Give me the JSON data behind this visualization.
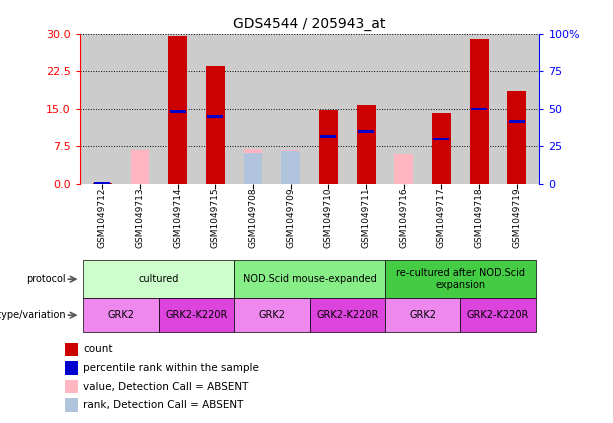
{
  "title": "GDS4544 / 205943_at",
  "samples": [
    "GSM1049712",
    "GSM1049713",
    "GSM1049714",
    "GSM1049715",
    "GSM1049708",
    "GSM1049709",
    "GSM1049710",
    "GSM1049711",
    "GSM1049716",
    "GSM1049717",
    "GSM1049718",
    "GSM1049719"
  ],
  "red_bars": [
    0.15,
    0,
    29.5,
    23.5,
    0,
    0,
    14.8,
    15.8,
    0,
    14.2,
    29.0,
    18.5
  ],
  "blue_markers": [
    0.15,
    0,
    14.5,
    13.5,
    0,
    0,
    9.5,
    10.5,
    0,
    9.0,
    15.0,
    12.5
  ],
  "pink_bars": [
    0,
    6.8,
    0,
    0,
    6.9,
    6.8,
    0,
    5.5,
    6.0,
    0,
    0,
    0
  ],
  "lightblue_bars": [
    0,
    0,
    0,
    0,
    6.2,
    6.5,
    0,
    0,
    0,
    0,
    0,
    0
  ],
  "ylim_left": [
    0,
    30
  ],
  "ylim_right": [
    0,
    100
  ],
  "yticks_left": [
    0,
    7.5,
    15,
    22.5,
    30
  ],
  "yticks_right": [
    0,
    25,
    50,
    75,
    100
  ],
  "protocol_groups": [
    {
      "label": "cultured",
      "start": 0,
      "end": 3,
      "color": "#ccffcc"
    },
    {
      "label": "NOD.Scid mouse-expanded",
      "start": 4,
      "end": 7,
      "color": "#88ee88"
    },
    {
      "label": "re-cultured after NOD.Scid\nexpansion",
      "start": 8,
      "end": 11,
      "color": "#44cc44"
    }
  ],
  "genotype_groups": [
    {
      "label": "GRK2",
      "start": 0,
      "end": 1,
      "color": "#ee88ee"
    },
    {
      "label": "GRK2-K220R",
      "start": 2,
      "end": 3,
      "color": "#dd44dd"
    },
    {
      "label": "GRK2",
      "start": 4,
      "end": 5,
      "color": "#ee88ee"
    },
    {
      "label": "GRK2-K220R",
      "start": 6,
      "end": 7,
      "color": "#dd44dd"
    },
    {
      "label": "GRK2",
      "start": 8,
      "end": 9,
      "color": "#ee88ee"
    },
    {
      "label": "GRK2-K220R",
      "start": 10,
      "end": 11,
      "color": "#dd44dd"
    }
  ],
  "bar_width": 0.5,
  "bg_color": "#cccccc",
  "red_color": "#cc0000",
  "blue_color": "#0000cc",
  "pink_color": "#ffb6c1",
  "lightblue_color": "#b0c4de",
  "legend_items": [
    {
      "color": "#cc0000",
      "label": "count"
    },
    {
      "color": "#0000cc",
      "label": "percentile rank within the sample"
    },
    {
      "color": "#ffb6c1",
      "label": "value, Detection Call = ABSENT"
    },
    {
      "color": "#b0c4de",
      "label": "rank, Detection Call = ABSENT"
    }
  ]
}
